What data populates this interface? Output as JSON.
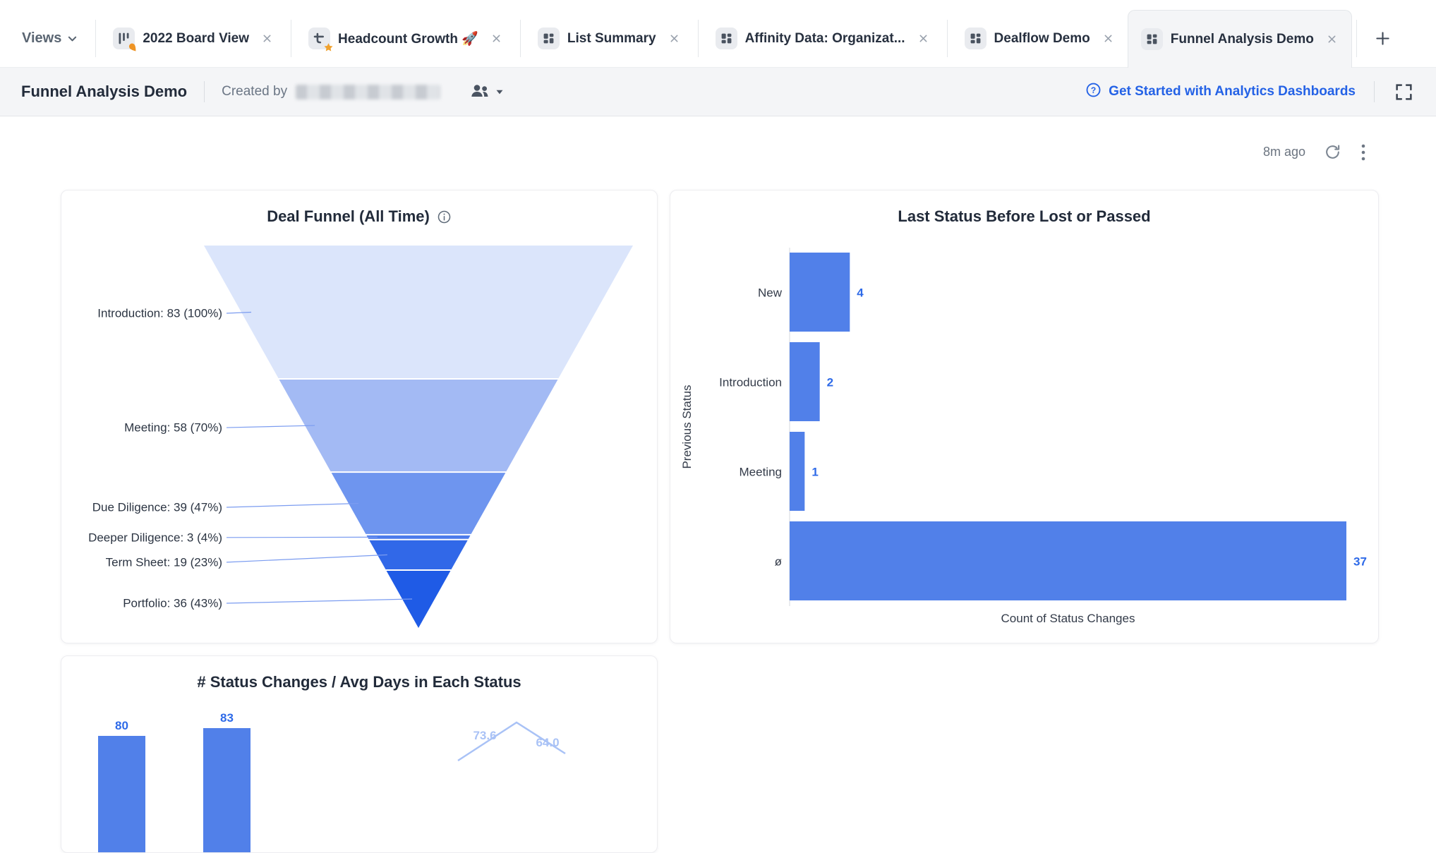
{
  "colors": {
    "accent_blue": "#2462e6",
    "bar_fill": "#5180e9",
    "value_label_blue": "#2e6ae8",
    "line_light_blue": "#a9c2f6",
    "leader_line": "#7b9cf0",
    "funnel_colors": [
      "#dbe5fb",
      "#a3baf4",
      "#6e95ef",
      "#4c7beb",
      "#3168e8",
      "#1f5be6"
    ],
    "active_tab_bg": "#f4f5f7"
  },
  "tab_bar": {
    "views_label": "Views",
    "add_label": "+",
    "tabs": [
      {
        "id": "2022-board-view",
        "label": "2022 Board View",
        "icon": "kanban-board",
        "badge": "pin",
        "active": false
      },
      {
        "id": "headcount-growth",
        "label": "Headcount Growth 🚀",
        "icon": "trend",
        "badge": "star",
        "active": false
      },
      {
        "id": "list-summary",
        "label": "List Summary",
        "icon": "dashboard-grid",
        "badge": "",
        "active": false
      },
      {
        "id": "affinity-data-organizations",
        "label": "Affinity Data: Organizat...",
        "icon": "dashboard-grid",
        "badge": "",
        "active": false
      },
      {
        "id": "dealflow-demo",
        "label": "Dealflow Demo",
        "icon": "dashboard-grid",
        "badge": "",
        "active": false
      },
      {
        "id": "funnel-analysis-demo",
        "label": "Funnel Analysis Demo",
        "icon": "dashboard-grid",
        "badge": "",
        "active": true
      }
    ]
  },
  "header": {
    "title": "Funnel Analysis Demo",
    "created_by_label": "Created by",
    "help_link_label": "Get Started with Analytics Dashboards"
  },
  "toolbar": {
    "last_refreshed": "8m ago"
  },
  "chart_data": [
    {
      "type": "funnel",
      "title": "Deal Funnel (All Time)",
      "stages": [
        "Introduction",
        "Meeting",
        "Due Diligence",
        "Deeper Diligence",
        "Term Sheet",
        "Portfolio"
      ],
      "values": [
        83,
        58,
        39,
        3,
        19,
        36
      ],
      "percent_labels": [
        "100%",
        "70%",
        "47%",
        "4%",
        "23%",
        "43%"
      ],
      "colors": [
        "#dbe5fb",
        "#a3baf4",
        "#6e95ef",
        "#4c7beb",
        "#3168e8",
        "#1f5be6"
      ]
    },
    {
      "type": "bar",
      "orientation": "horizontal",
      "title": "Last Status Before Lost or Passed",
      "categories": [
        "New",
        "Introduction",
        "Meeting",
        "ø"
      ],
      "values": [
        4,
        2,
        1,
        37
      ],
      "xlabel": "Count of Status Changes",
      "ylabel": "Previous Status",
      "xlim": [
        0,
        38
      ],
      "grid": false,
      "bar_color": "#5180e9"
    },
    {
      "type": "bar-line-combo",
      "title": "# Status Changes / Avg Days in Each Status",
      "visible_bar_values": [
        80,
        83
      ],
      "visible_line_values": [
        73.6,
        64.0
      ],
      "bar_color": "#5180e9",
      "line_color": "#a9c2f6"
    }
  ]
}
